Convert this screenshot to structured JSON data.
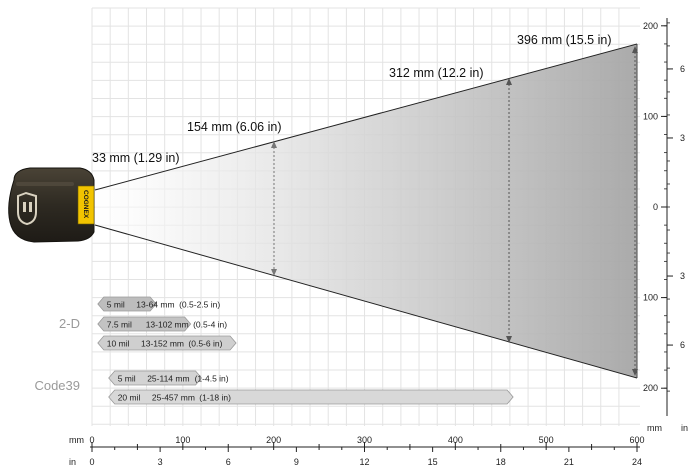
{
  "field_labels": [
    "33 mm (1.29 in)",
    "154 mm (6.06 in)",
    "312 mm (12.2 in)",
    "396 mm (15.5 in)"
  ],
  "reader": {
    "logo_text": "COGNEX"
  },
  "groups": [
    {
      "label": "2-D",
      "bars": [
        {
          "mil": "5 mil",
          "range_mm": "13-64 mm",
          "range_in": "(0.5-2.5 in)",
          "start_mm": 13,
          "end_mm": 64
        },
        {
          "mil": "7.5 mil",
          "range_mm": "13-102 mm",
          "range_in": "(0.5-4 in)",
          "start_mm": 13,
          "end_mm": 102
        },
        {
          "mil": "10 mil",
          "range_mm": "13-152 mm",
          "range_in": "(0.5-6 in)",
          "start_mm": 13,
          "end_mm": 152
        }
      ]
    },
    {
      "label": "Code39",
      "bars": [
        {
          "mil": "5 mil",
          "range_mm": "25-114 mm",
          "range_in": "(1-4.5 in)",
          "start_mm": 25,
          "end_mm": 114
        },
        {
          "mil": "20 mil",
          "range_mm": "25-457 mm",
          "range_in": "(1-18 in)",
          "start_mm": 25,
          "end_mm": 457
        }
      ]
    }
  ],
  "axis_bottom": {
    "mm_unit": "mm",
    "in_unit": "in",
    "mm_ticks": [
      "0",
      "100",
      "200",
      "300",
      "400",
      "500",
      "600"
    ],
    "in_ticks": [
      "0",
      "3",
      "6",
      "9",
      "12",
      "15",
      "18",
      "21",
      "24"
    ]
  },
  "axis_right": {
    "mm_unit": "mm",
    "in_unit": "in",
    "mm_ticks": [
      "200",
      "100",
      "0",
      "100",
      "200"
    ],
    "in_ticks": [
      "6",
      "3",
      "3",
      "6"
    ]
  }
}
